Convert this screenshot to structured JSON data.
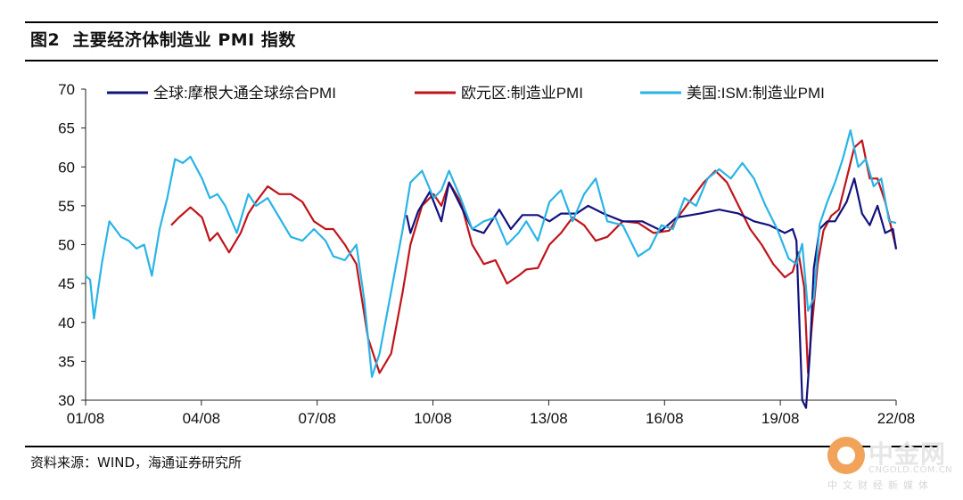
{
  "header": {
    "figure_label": "图2",
    "title": "主要经济体制造业 PMI 指数"
  },
  "source": "资料来源：WIND，海通证券研究所",
  "watermark": {
    "name": "中金网",
    "domain": "CNGOLD.COM.CN",
    "tagline": "中文财经新媒体"
  },
  "colors": {
    "global": "#12127e",
    "euro": "#c0141b",
    "us": "#2ab4e6"
  },
  "chart_data": {
    "type": "line",
    "title": "主要经济体制造业 PMI 指数",
    "xlabel": "",
    "ylabel": "",
    "ylim": [
      30,
      70
    ],
    "yticks": [
      30,
      35,
      40,
      45,
      50,
      55,
      60,
      65,
      70
    ],
    "xlim": [
      2001.583,
      2022.583
    ],
    "xticks": [
      {
        "label": "01/08",
        "x": 2001.583
      },
      {
        "label": "04/08",
        "x": 2004.583
      },
      {
        "label": "07/08",
        "x": 2007.583
      },
      {
        "label": "10/08",
        "x": 2010.583
      },
      {
        "label": "13/08",
        "x": 2013.583
      },
      {
        "label": "16/08",
        "x": 2016.583
      },
      {
        "label": "19/08",
        "x": 2019.583
      },
      {
        "label": "22/08",
        "x": 2022.583
      }
    ],
    "legend_position": "top",
    "series": [
      {
        "name": "全球:摩根大通全球综合PMI",
        "color_key": "global",
        "x": [
          2009.9,
          2010.0,
          2010.2,
          2010.5,
          2010.8,
          2011.0,
          2011.3,
          2011.6,
          2011.9,
          2012.3,
          2012.6,
          2012.9,
          2013.3,
          2013.6,
          2013.9,
          2014.3,
          2014.6,
          2015.0,
          2015.5,
          2016.0,
          2016.5,
          2016.9,
          2017.5,
          2018.0,
          2018.5,
          2018.9,
          2019.3,
          2019.7,
          2019.9,
          2020.0,
          2020.15,
          2020.25,
          2020.35,
          2020.45,
          2020.6,
          2020.8,
          2021.0,
          2021.3,
          2021.5,
          2021.7,
          2021.9,
          2022.1,
          2022.3,
          2022.5,
          2022.583
        ],
        "values": [
          53.8,
          51.5,
          54.3,
          56.8,
          53.0,
          58.0,
          55.0,
          52.0,
          51.5,
          54.5,
          52.0,
          53.8,
          53.8,
          53.0,
          54.0,
          54.0,
          55.0,
          54.0,
          53.0,
          53.0,
          51.8,
          53.5,
          54.0,
          54.5,
          54.0,
          53.0,
          52.5,
          51.5,
          52.0,
          50.5,
          30.0,
          29.0,
          36.0,
          47.0,
          52.0,
          53.0,
          53.0,
          55.5,
          58.5,
          54.0,
          52.5,
          55.0,
          51.5,
          52.0,
          49.4
        ]
      },
      {
        "name": "欧元区:制造业PMI",
        "color_key": "euro",
        "x": [
          2003.8,
          2004.0,
          2004.3,
          2004.6,
          2004.8,
          2005.0,
          2005.3,
          2005.6,
          2005.8,
          2006.0,
          2006.3,
          2006.6,
          2006.9,
          2007.2,
          2007.5,
          2007.8,
          2008.0,
          2008.3,
          2008.6,
          2008.9,
          2009.2,
          2009.5,
          2009.8,
          2010.0,
          2010.3,
          2010.6,
          2010.8,
          2011.0,
          2011.3,
          2011.6,
          2011.9,
          2012.2,
          2012.5,
          2012.8,
          2013.0,
          2013.3,
          2013.6,
          2013.9,
          2014.2,
          2014.5,
          2014.8,
          2015.1,
          2015.5,
          2015.9,
          2016.3,
          2016.7,
          2017.0,
          2017.3,
          2017.6,
          2017.9,
          2018.2,
          2018.5,
          2018.8,
          2019.1,
          2019.4,
          2019.7,
          2019.9,
          2020.05,
          2020.2,
          2020.3,
          2020.4,
          2020.55,
          2020.7,
          2020.9,
          2021.1,
          2021.3,
          2021.5,
          2021.7,
          2021.9,
          2022.1,
          2022.3,
          2022.583
        ],
        "values": [
          52.5,
          53.5,
          54.8,
          53.5,
          50.5,
          51.5,
          49.0,
          51.5,
          54.0,
          55.5,
          57.5,
          56.5,
          56.5,
          55.5,
          53.0,
          52.0,
          52.0,
          50.0,
          47.5,
          38.0,
          33.5,
          36.0,
          44.0,
          50.0,
          55.0,
          56.5,
          55.0,
          58.0,
          55.5,
          50.0,
          47.5,
          48.0,
          45.0,
          46.0,
          46.8,
          47.0,
          50.0,
          51.5,
          53.5,
          52.5,
          50.5,
          51.0,
          53.0,
          52.8,
          51.5,
          51.8,
          54.0,
          56.0,
          58.0,
          59.5,
          58.0,
          55.0,
          52.0,
          50.0,
          47.5,
          45.8,
          46.5,
          49.0,
          44.5,
          33.5,
          39.5,
          47.5,
          51.8,
          53.7,
          54.5,
          58.5,
          62.5,
          63.4,
          58.5,
          58.5,
          55.5,
          49.5
        ]
      },
      {
        "name": "美国:ISM:制造业PMI",
        "color_key": "us",
        "x": [
          2001.583,
          2001.7,
          2001.8,
          2002.0,
          2002.2,
          2002.5,
          2002.7,
          2002.9,
          2003.1,
          2003.3,
          2003.5,
          2003.7,
          2003.9,
          2004.1,
          2004.3,
          2004.6,
          2004.8,
          2005.0,
          2005.2,
          2005.5,
          2005.8,
          2006.0,
          2006.3,
          2006.6,
          2006.9,
          2007.2,
          2007.5,
          2007.8,
          2008.0,
          2008.3,
          2008.6,
          2008.8,
          2009.0,
          2009.2,
          2009.5,
          2009.8,
          2010.0,
          2010.3,
          2010.6,
          2010.8,
          2011.0,
          2011.3,
          2011.6,
          2011.9,
          2012.2,
          2012.5,
          2012.8,
          2013.0,
          2013.3,
          2013.6,
          2013.9,
          2014.2,
          2014.5,
          2014.8,
          2015.1,
          2015.5,
          2015.9,
          2016.2,
          2016.5,
          2016.8,
          2017.1,
          2017.4,
          2017.7,
          2018.0,
          2018.3,
          2018.6,
          2018.9,
          2019.2,
          2019.5,
          2019.8,
          2020.0,
          2020.15,
          2020.3,
          2020.45,
          2020.6,
          2020.8,
          2021.0,
          2021.2,
          2021.4,
          2021.6,
          2021.8,
          2022.0,
          2022.2,
          2022.4,
          2022.583
        ],
        "values": [
          46.0,
          45.5,
          40.5,
          47.5,
          53.0,
          51.0,
          50.5,
          49.5,
          50.0,
          46.0,
          52.0,
          56.0,
          61.0,
          60.5,
          61.3,
          58.5,
          56.0,
          56.5,
          55.0,
          51.5,
          56.5,
          55.0,
          56.0,
          53.5,
          51.0,
          50.5,
          52.0,
          50.5,
          48.5,
          48.0,
          50.0,
          43.0,
          33.0,
          36.0,
          44.0,
          52.0,
          58.0,
          59.5,
          56.0,
          57.0,
          59.5,
          56.0,
          52.0,
          53.0,
          53.5,
          50.0,
          51.5,
          53.0,
          50.5,
          55.5,
          57.0,
          53.0,
          56.5,
          58.5,
          53.0,
          52.5,
          48.5,
          49.5,
          52.5,
          52.0,
          56.0,
          55.0,
          58.5,
          59.7,
          58.5,
          60.5,
          58.5,
          55.0,
          52.0,
          48.2,
          47.5,
          50.1,
          41.5,
          43.1,
          52.6,
          55.5,
          58.0,
          61.0,
          64.7,
          60.0,
          61.0,
          57.5,
          58.5,
          53.0,
          52.8
        ]
      }
    ]
  }
}
